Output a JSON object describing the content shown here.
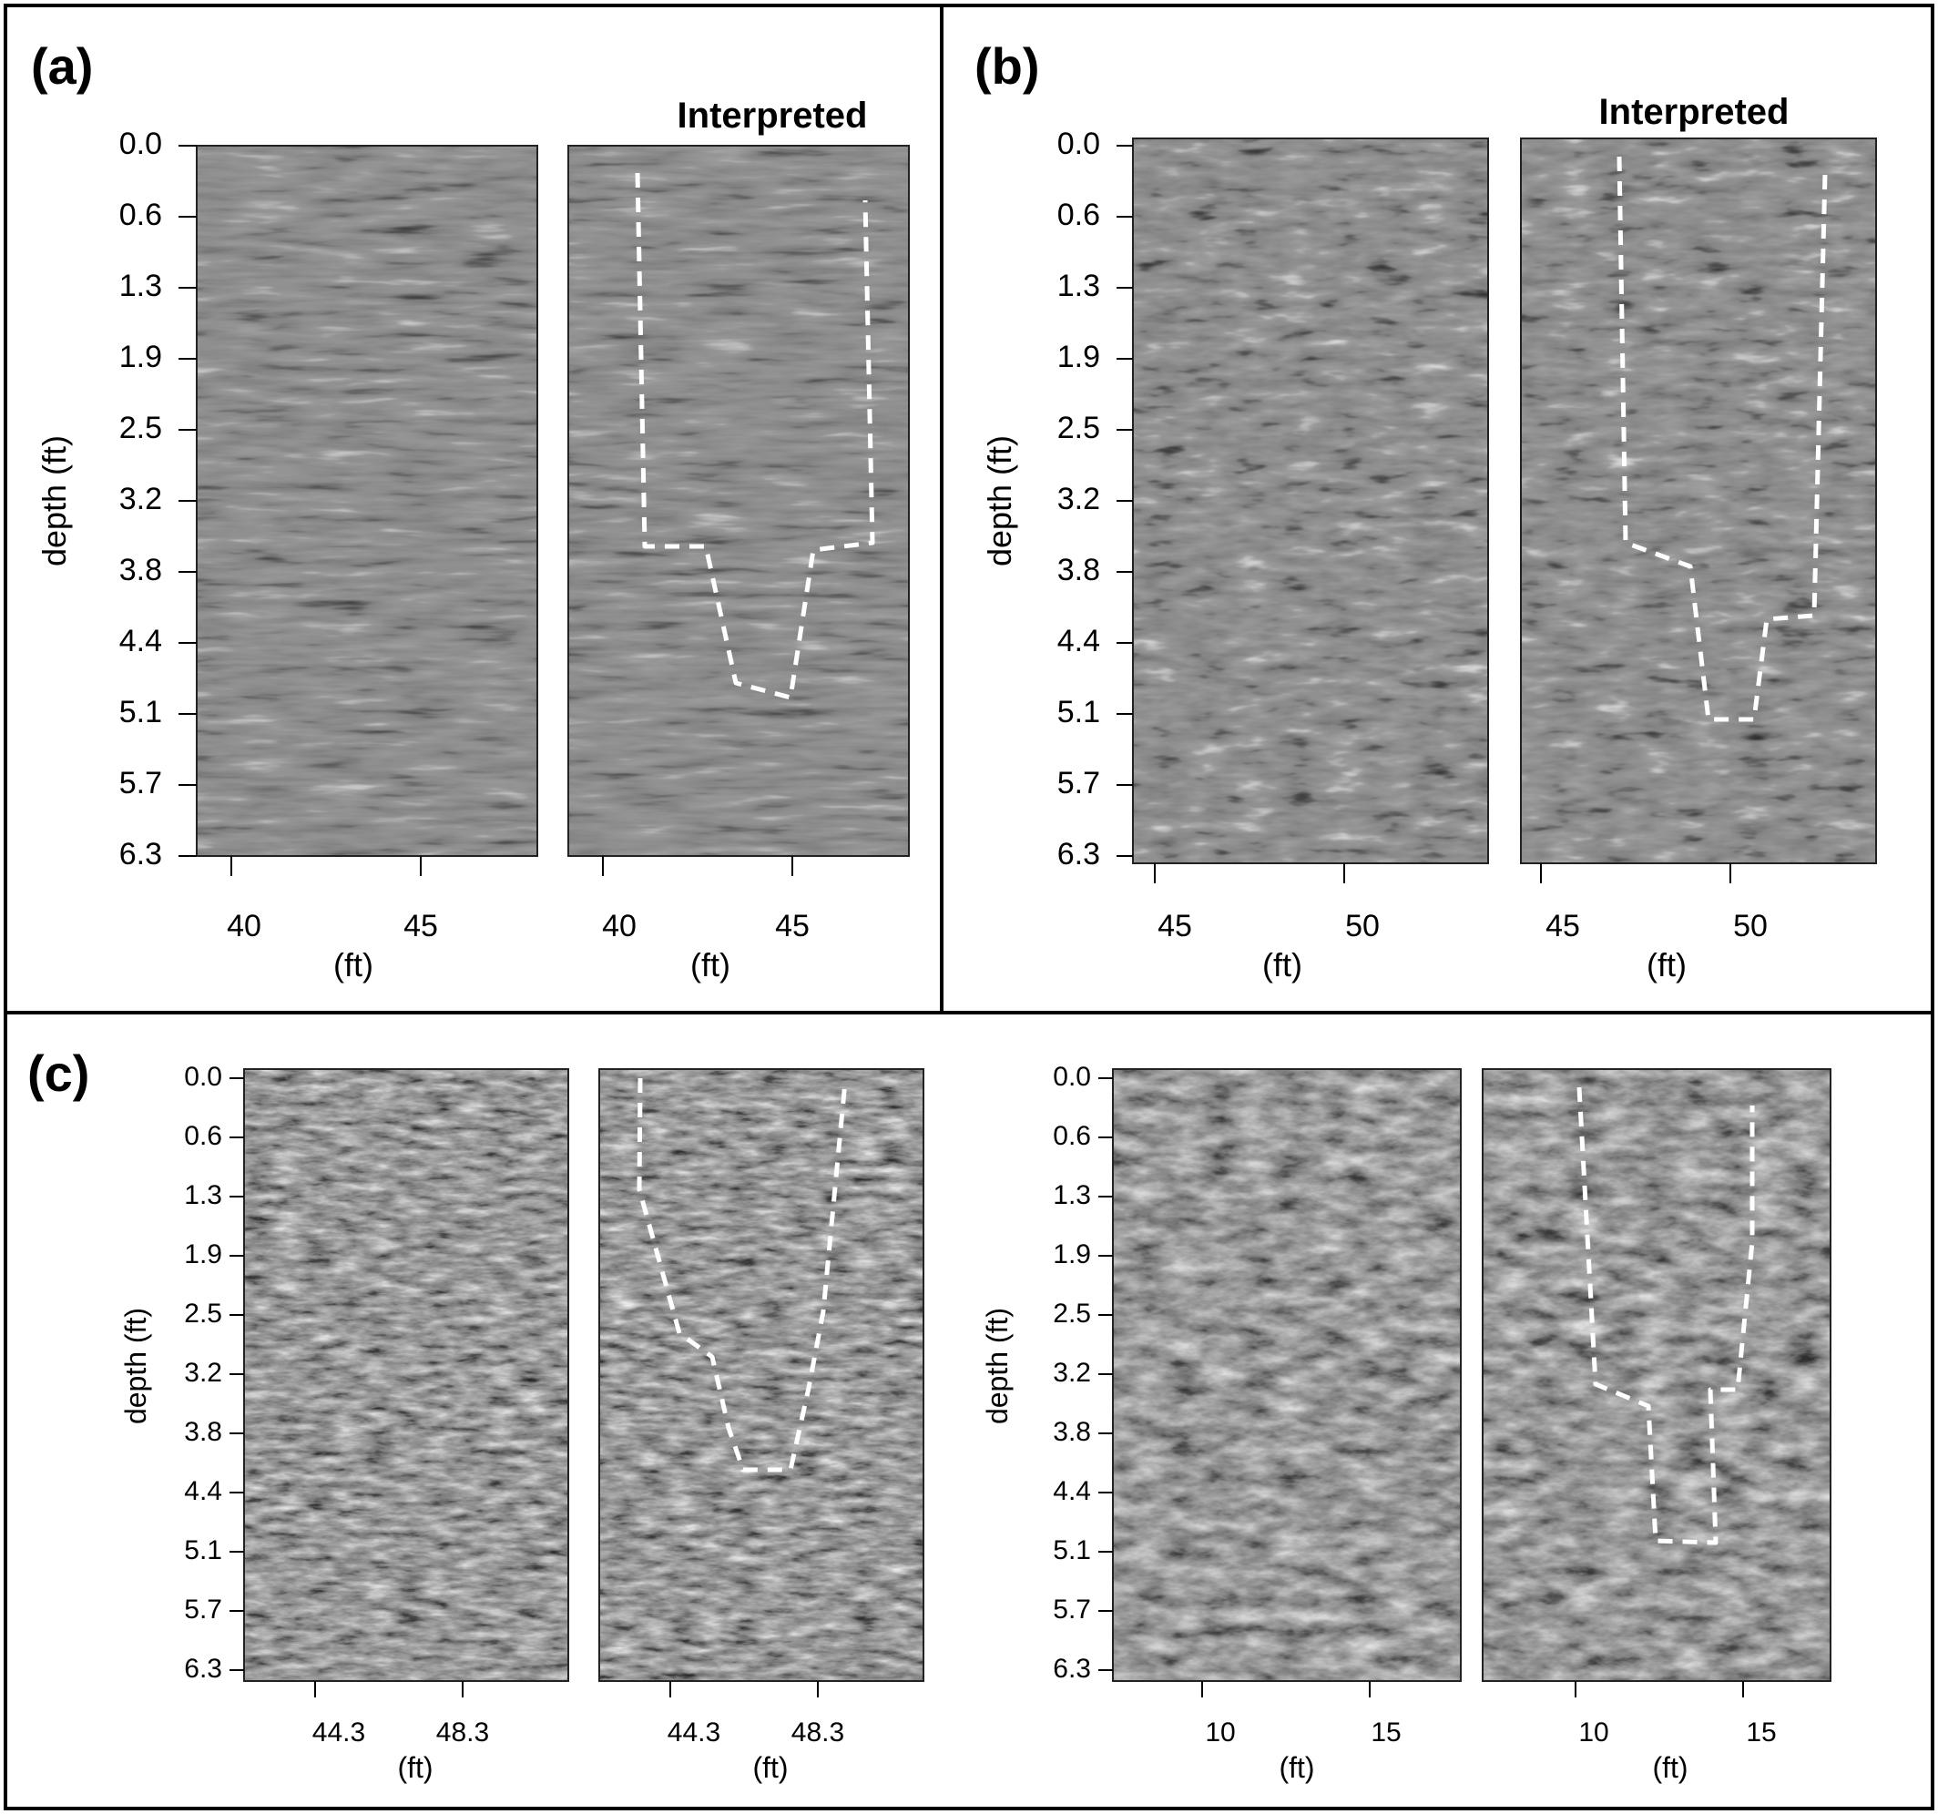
{
  "figure": {
    "panels": [
      {
        "id": "a",
        "label": "(a)",
        "y_axis_label": "depth (ft)",
        "y_ticks": [
          "0.0",
          "0.6",
          "1.3",
          "1.9",
          "2.5",
          "3.2",
          "3.8",
          "4.4",
          "5.1",
          "5.7",
          "6.3"
        ],
        "x_axis_label": "(ft)",
        "images": [
          {
            "title": "",
            "x_ticks": [
              "40",
              "45"
            ],
            "interpreted": false
          },
          {
            "title": "Interpreted",
            "x_ticks": [
              "40",
              "45"
            ],
            "interpreted": true
          }
        ]
      },
      {
        "id": "b",
        "label": "(b)",
        "y_axis_label": "depth (ft)",
        "y_ticks": [
          "0.0",
          "0.6",
          "1.3",
          "1.9",
          "2.5",
          "3.2",
          "3.8",
          "4.4",
          "5.1",
          "5.7",
          "6.3"
        ],
        "x_axis_label": "(ft)",
        "images": [
          {
            "title": "",
            "x_ticks": [
              "45",
              "50"
            ],
            "interpreted": false
          },
          {
            "title": "Interpreted",
            "x_ticks": [
              "45",
              "50"
            ],
            "interpreted": true
          }
        ]
      },
      {
        "id": "c1",
        "label": "(c)",
        "y_axis_label": "depth (ft)",
        "y_ticks": [
          "0.0",
          "0.6",
          "1.3",
          "1.9",
          "2.5",
          "3.2",
          "3.8",
          "4.4",
          "5.1",
          "5.7",
          "6.3"
        ],
        "x_axis_label": "(ft)",
        "images": [
          {
            "title": "",
            "x_ticks": [
              "44.3",
              "48.3"
            ],
            "interpreted": false
          },
          {
            "title": "",
            "x_ticks": [
              "44.3",
              "48.3"
            ],
            "interpreted": true
          }
        ]
      },
      {
        "id": "c2",
        "label": "",
        "y_axis_label": "depth (ft)",
        "y_ticks": [
          "0.0",
          "0.6",
          "1.3",
          "1.9",
          "2.5",
          "3.2",
          "3.8",
          "4.4",
          "5.1",
          "5.7",
          "6.3"
        ],
        "x_axis_label": "(ft)",
        "images": [
          {
            "title": "",
            "x_ticks": [
              "10",
              "15"
            ],
            "interpreted": false
          },
          {
            "title": "",
            "x_ticks": [
              "10",
              "15"
            ],
            "interpreted": true
          }
        ]
      }
    ],
    "colors": {
      "background": "#ffffff",
      "frame": "#000000",
      "radargram_base": "#8a8a8a",
      "interpretation_line": "#ffffff"
    }
  }
}
